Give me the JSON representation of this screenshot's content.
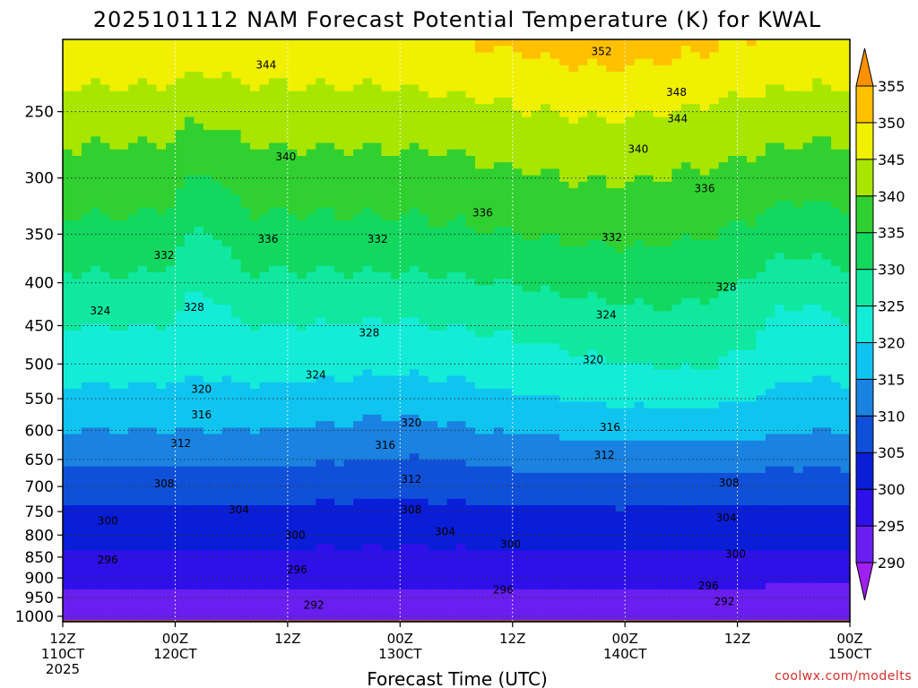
{
  "chart_data": {
    "type": "heatmap",
    "title": "2025101112 NAM Forecast Potential Temperature (K) for KWAL",
    "xlabel": "Forecast Time (UTC)",
    "ylabel": "",
    "credit": "coolwx.com/modelts",
    "y_axis": {
      "scale": "log",
      "inverted": true,
      "range": [
        1015,
        205
      ],
      "ticks": [
        250,
        300,
        350,
        400,
        450,
        500,
        550,
        600,
        650,
        700,
        750,
        800,
        850,
        900,
        950,
        1000
      ]
    },
    "x_axis": {
      "range_hours": [
        0,
        84
      ],
      "ticks": [
        {
          "hour": 0,
          "lines": [
            "12Z",
            "110CT",
            "2025"
          ]
        },
        {
          "hour": 12,
          "lines": [
            "00Z",
            "120CT"
          ]
        },
        {
          "hour": 24,
          "lines": [
            "12Z"
          ]
        },
        {
          "hour": 36,
          "lines": [
            "00Z",
            "130CT"
          ]
        },
        {
          "hour": 48,
          "lines": [
            "12Z"
          ]
        },
        {
          "hour": 60,
          "lines": [
            "00Z",
            "140CT"
          ]
        },
        {
          "hour": 72,
          "lines": [
            "12Z"
          ]
        },
        {
          "hour": 84,
          "lines": [
            "00Z",
            "150CT"
          ]
        }
      ]
    },
    "grid": true,
    "colorbar": {
      "ticks": [
        290,
        295,
        300,
        305,
        310,
        315,
        320,
        325,
        330,
        335,
        340,
        345,
        350,
        355
      ],
      "bins": [
        {
          "lo": 285,
          "hi": 290,
          "color": "#a020f0"
        },
        {
          "lo": 290,
          "hi": 295,
          "color": "#6a1ff0"
        },
        {
          "lo": 295,
          "hi": 300,
          "color": "#2e10e8"
        },
        {
          "lo": 300,
          "hi": 305,
          "color": "#0a1ed8"
        },
        {
          "lo": 305,
          "hi": 310,
          "color": "#1050d8"
        },
        {
          "lo": 310,
          "hi": 315,
          "color": "#1a82e0"
        },
        {
          "lo": 315,
          "hi": 320,
          "color": "#10c4f0"
        },
        {
          "lo": 320,
          "hi": 325,
          "color": "#14ecd8"
        },
        {
          "lo": 325,
          "hi": 330,
          "color": "#10e8a0"
        },
        {
          "lo": 330,
          "hi": 335,
          "color": "#12d860"
        },
        {
          "lo": 335,
          "hi": 340,
          "color": "#30d030"
        },
        {
          "lo": 340,
          "hi": 345,
          "color": "#a8e600"
        },
        {
          "lo": 345,
          "hi": 350,
          "color": "#f0f000"
        },
        {
          "lo": 350,
          "hi": 355,
          "color": "#ffc000"
        },
        {
          "lo": 355,
          "hi": 360,
          "color": "#ff9000"
        }
      ]
    },
    "ground_color": "#a0522d",
    "contour_labels": [
      {
        "value": "344",
        "hour": 21.7,
        "p": 220
      },
      {
        "value": "352",
        "hour": 57.5,
        "p": 212
      },
      {
        "value": "348",
        "hour": 65.5,
        "p": 237
      },
      {
        "value": "344",
        "hour": 65.6,
        "p": 255
      },
      {
        "value": "340",
        "hour": 23.8,
        "p": 283
      },
      {
        "value": "340",
        "hour": 61.4,
        "p": 277
      },
      {
        "value": "336",
        "hour": 68.5,
        "p": 309
      },
      {
        "value": "336",
        "hour": 44.8,
        "p": 330
      },
      {
        "value": "336",
        "hour": 21.9,
        "p": 355
      },
      {
        "value": "332",
        "hour": 10.8,
        "p": 371
      },
      {
        "value": "332",
        "hour": 33.6,
        "p": 355
      },
      {
        "value": "332",
        "hour": 58.6,
        "p": 353
      },
      {
        "value": "328",
        "hour": 70.8,
        "p": 405
      },
      {
        "value": "328",
        "hour": 14.0,
        "p": 428
      },
      {
        "value": "328",
        "hour": 32.7,
        "p": 459
      },
      {
        "value": "324",
        "hour": 4.0,
        "p": 432
      },
      {
        "value": "324",
        "hour": 58.0,
        "p": 437
      },
      {
        "value": "324",
        "hour": 27.0,
        "p": 515
      },
      {
        "value": "320",
        "hour": 56.6,
        "p": 494
      },
      {
        "value": "320",
        "hour": 14.8,
        "p": 536
      },
      {
        "value": "320",
        "hour": 37.2,
        "p": 588
      },
      {
        "value": "316",
        "hour": 14.8,
        "p": 575
      },
      {
        "value": "316",
        "hour": 58.4,
        "p": 595
      },
      {
        "value": "316",
        "hour": 34.4,
        "p": 625
      },
      {
        "value": "312",
        "hour": 12.6,
        "p": 622
      },
      {
        "value": "312",
        "hour": 57.8,
        "p": 642
      },
      {
        "value": "312",
        "hour": 37.2,
        "p": 686
      },
      {
        "value": "308",
        "hour": 10.8,
        "p": 695
      },
      {
        "value": "308",
        "hour": 71.1,
        "p": 693
      },
      {
        "value": "308",
        "hour": 37.2,
        "p": 746
      },
      {
        "value": "304",
        "hour": 18.8,
        "p": 746
      },
      {
        "value": "304",
        "hour": 70.8,
        "p": 763
      },
      {
        "value": "304",
        "hour": 40.8,
        "p": 793
      },
      {
        "value": "300",
        "hour": 4.8,
        "p": 770
      },
      {
        "value": "300",
        "hour": 24.8,
        "p": 800
      },
      {
        "value": "300",
        "hour": 47.8,
        "p": 820
      },
      {
        "value": "300",
        "hour": 71.8,
        "p": 843
      },
      {
        "value": "296",
        "hour": 4.8,
        "p": 857
      },
      {
        "value": "296",
        "hour": 25.0,
        "p": 880
      },
      {
        "value": "296",
        "hour": 47.0,
        "p": 930
      },
      {
        "value": "296",
        "hour": 68.9,
        "p": 920
      },
      {
        "value": "292",
        "hour": 26.8,
        "p": 970
      },
      {
        "value": "292",
        "hour": 70.6,
        "p": 960
      }
    ]
  }
}
